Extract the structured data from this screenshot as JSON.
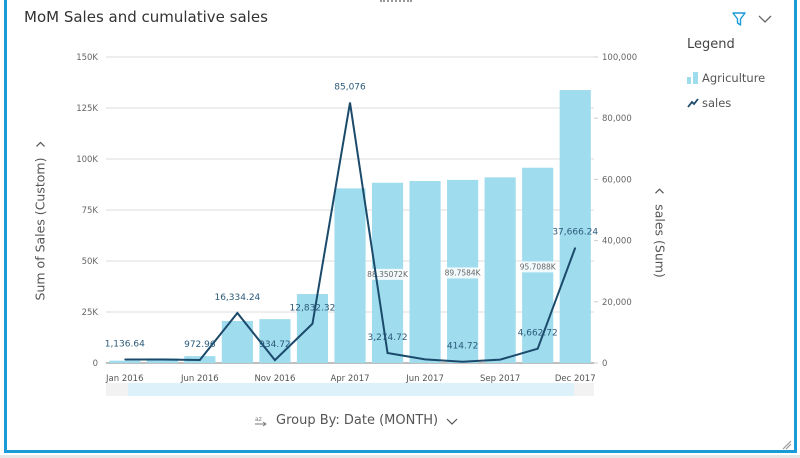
{
  "header": {
    "title": "MoM Sales and cumulative sales",
    "filter_icon": "filter-icon",
    "menu_icon": "chevron-down-icon"
  },
  "legend": {
    "title": "Legend",
    "items": [
      {
        "label": "Agriculture",
        "icon": "bar-series-icon",
        "color": "#9fdcee"
      },
      {
        "label": "sales",
        "icon": "line-series-icon",
        "color": "#1b4a6b"
      }
    ]
  },
  "axes": {
    "left_title": "Sum of Sales (Custom)",
    "right_title": "sales (Sum)"
  },
  "footer": {
    "group_by_label": "Group By: Date (MONTH)",
    "sort_icon": "sort-az-icon"
  },
  "colors": {
    "bar": "#9fdcee",
    "line": "#1b4a6b",
    "accent_border": "#1a9ad6",
    "filter_icon": "#1a9ad6",
    "gridline": "#dddddd",
    "scrollbar": "#ddf1fb"
  },
  "chart_data": {
    "type": "bar",
    "title": "MoM Sales and cumulative sales",
    "xlabel": "Group By: Date (MONTH)",
    "ylabel": "Sum of Sales (Custom)",
    "y2label": "sales (Sum)",
    "categories": [
      "Jan 2016",
      "",
      "Jun 2016",
      "",
      "Nov 2016",
      "",
      "Apr 2017",
      "",
      "Jun 2017",
      "",
      "Sep 2017",
      "",
      "Dec 2017"
    ],
    "x_tick_labels": [
      "Jan 2016",
      "Jun 2016",
      "Nov 2016",
      "Apr 2017",
      "Jun 2017",
      "Sep 2017",
      "Dec 2017"
    ],
    "ylim": [
      0,
      150000
    ],
    "yticks": [
      0,
      25000,
      50000,
      75000,
      100000,
      125000,
      150000
    ],
    "ytick_labels": [
      "0",
      "25K",
      "50K",
      "75K",
      "100K",
      "125K",
      "150K"
    ],
    "y2lim": [
      0,
      100000
    ],
    "y2ticks": [
      0,
      20000,
      40000,
      60000,
      80000,
      100000
    ],
    "y2tick_labels": [
      "0",
      "20,000",
      "40,000",
      "60,000",
      "80,000",
      "100,000"
    ],
    "grid": true,
    "legend_position": "right",
    "series": [
      {
        "name": "Agriculture",
        "type": "bar",
        "axis": "left",
        "values": [
          1137,
          2270,
          3380,
          20600,
          21500,
          33800,
          85600,
          88351,
          89200,
          89758,
          91000,
          95709,
          133800
        ],
        "data_labels": [
          "",
          "",
          "",
          "",
          "",
          "",
          "",
          "88.35072K",
          "",
          "89.7584K",
          "",
          "95.7088K",
          ""
        ]
      },
      {
        "name": "sales",
        "type": "line",
        "axis": "right",
        "values": [
          1136.64,
          1136.64,
          972.96,
          16334.24,
          934.72,
          12832.32,
          85076,
          3274.72,
          1200,
          414.72,
          1100,
          4662.72,
          37666.24
        ],
        "data_labels": [
          "1,136.64",
          "",
          "972.96",
          "16,334.24",
          "934.72",
          "12,832.32",
          "85,076",
          "3,274.72",
          "",
          "414.72",
          "",
          "4,662.72",
          "37,666.24"
        ]
      }
    ]
  }
}
